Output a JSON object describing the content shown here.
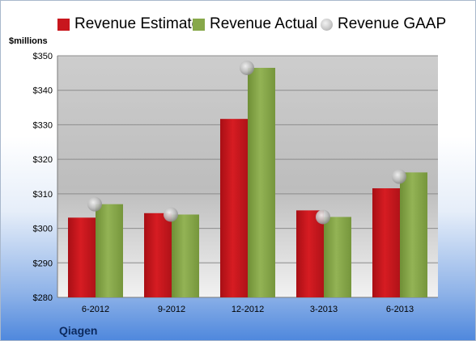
{
  "legend": {
    "estimate": "Revenue Estimate",
    "actual": "Revenue Actual",
    "gaap": "Revenue GAAP"
  },
  "unit_label": "$millions",
  "company": "Qiagen",
  "colors": {
    "estimate": "#c8161d",
    "actual": "#87a84a",
    "gaap": "#b9b9b9"
  },
  "chart_data": {
    "type": "bar",
    "categories": [
      "6-2012",
      "9-2012",
      "12-2012",
      "3-2013",
      "6-2013"
    ],
    "series": [
      {
        "name": "Revenue Estimate",
        "values": [
          303.1,
          304.4,
          331.7,
          305.2,
          311.6
        ]
      },
      {
        "name": "Revenue Actual",
        "values": [
          307.0,
          304.0,
          346.5,
          303.3,
          316.2
        ]
      },
      {
        "name": "Revenue GAAP",
        "type": "scatter",
        "values": [
          307.0,
          304.0,
          346.5,
          303.3,
          315.0
        ]
      }
    ],
    "ylabel": "$millions",
    "ylim": [
      280,
      350
    ],
    "yticks": [
      "$280",
      "$290",
      "$300",
      "$310",
      "$320",
      "$330",
      "$340",
      "$350"
    ],
    "grid": true,
    "legend_position": "top"
  }
}
